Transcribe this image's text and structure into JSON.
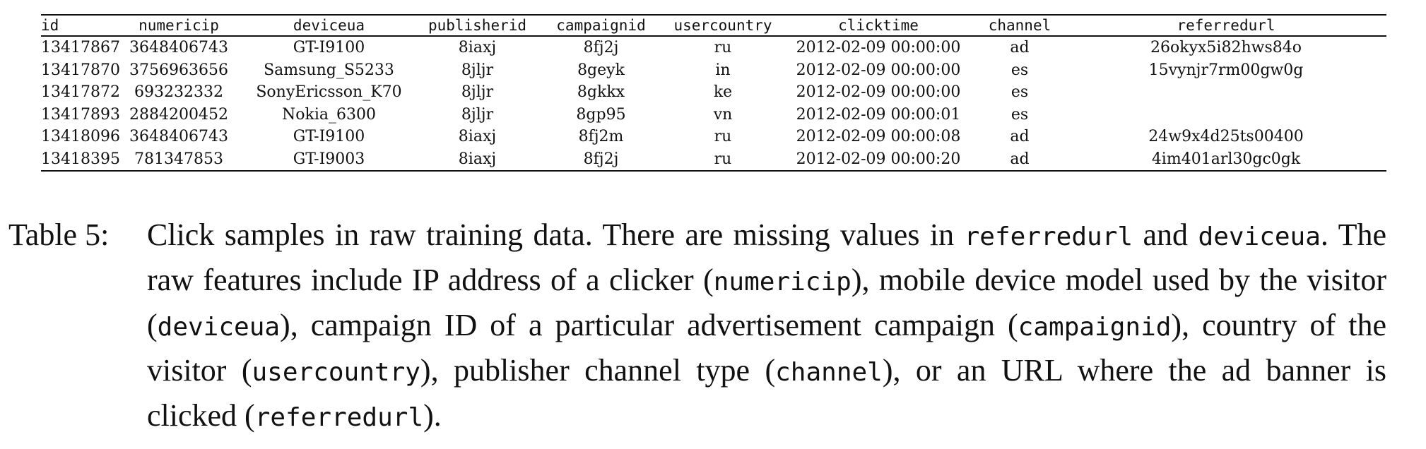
{
  "table": {
    "columns": [
      "id",
      "numericip",
      "deviceua",
      "publisherid",
      "campaignid",
      "usercountry",
      "clicktime",
      "channel",
      "referredurl"
    ],
    "rows": [
      [
        "13417867",
        "3648406743",
        "GT-I9100",
        "8iaxj",
        "8fj2j",
        "ru",
        "2012-02-09 00:00:00",
        "ad",
        "26okyx5i82hws84o"
      ],
      [
        "13417870",
        "3756963656",
        "Samsung_S5233",
        "8jljr",
        "8geyk",
        "in",
        "2012-02-09 00:00:00",
        "es",
        "15vynjr7rm00gw0g"
      ],
      [
        "13417872",
        "693232332",
        "SonyEricsson_K70",
        "8jljr",
        "8gkkx",
        "ke",
        "2012-02-09 00:00:00",
        "es",
        ""
      ],
      [
        "13417893",
        "2884200452",
        "Nokia_6300",
        "8jljr",
        "8gp95",
        "vn",
        "2012-02-09 00:00:01",
        "es",
        ""
      ],
      [
        "13418096",
        "3648406743",
        "GT-I9100",
        "8iaxj",
        "8fj2m",
        "ru",
        "2012-02-09 00:00:08",
        "ad",
        "24w9x4d25ts00400"
      ],
      [
        "13418395",
        "781347853",
        "GT-I9003",
        "8iaxj",
        "8fj2j",
        "ru",
        "2012-02-09 00:00:20",
        "ad",
        "4im401arl30gc0gk"
      ]
    ]
  },
  "caption": {
    "label": "Table 5:",
    "parts": [
      {
        "text": "Click samples in raw training data. There are missing values in "
      },
      {
        "code": "referredurl"
      },
      {
        "text": " and "
      },
      {
        "code": "deviceua"
      },
      {
        "text": ". The raw features include IP address of a clicker ("
      },
      {
        "code": "numericip"
      },
      {
        "text": "), mobile device model used by the visitor ("
      },
      {
        "code": "deviceua"
      },
      {
        "text": "), campaign ID of a particular advertisement campaign ("
      },
      {
        "code": "campaignid"
      },
      {
        "text": "), country of the visitor ("
      },
      {
        "code": "usercountry"
      },
      {
        "text": "), publisher channel type ("
      },
      {
        "code": "channel"
      },
      {
        "text": "), or an URL where the ad banner is clicked ("
      },
      {
        "code": "referredurl"
      },
      {
        "text": ")."
      }
    ]
  }
}
